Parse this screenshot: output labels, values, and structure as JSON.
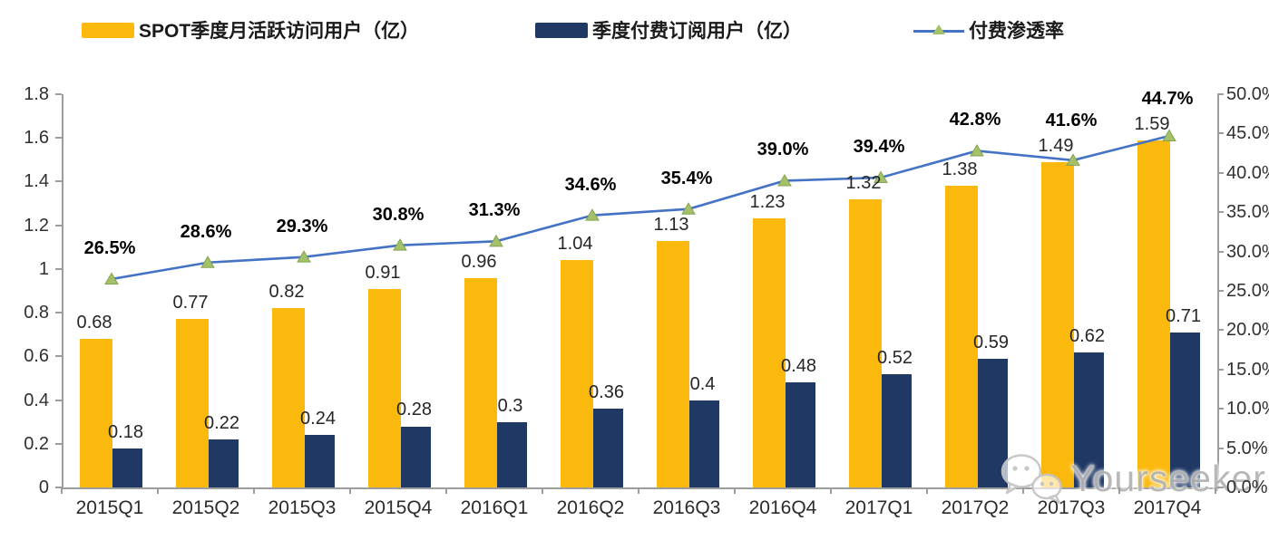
{
  "legend": [
    {
      "label": "SPOT季度月活跃访问用户（亿）",
      "type": "bar",
      "color": "#FBB90D"
    },
    {
      "label": "季度付费订阅用户（亿）",
      "type": "bar",
      "color": "#1F3864"
    },
    {
      "label": "付费渗透率",
      "type": "line",
      "color": "#4472C4",
      "marker_color": "#A4C16A"
    }
  ],
  "chart_data": {
    "type": "bar",
    "subtype": "combo-bar-line-dual-axis",
    "categories": [
      "2015Q1",
      "2015Q2",
      "2015Q3",
      "2015Q4",
      "2016Q1",
      "2016Q2",
      "2016Q3",
      "2016Q4",
      "2017Q1",
      "2017Q2",
      "2017Q3",
      "2017Q4"
    ],
    "series": [
      {
        "name": "SPOT季度月活跃访问用户（亿）",
        "type": "bar",
        "axis": "left",
        "color": "#FBB90D",
        "values": [
          0.68,
          0.77,
          0.82,
          0.91,
          0.96,
          1.04,
          1.13,
          1.23,
          1.32,
          1.38,
          1.49,
          1.59
        ],
        "labels": [
          "0.68",
          "0.77",
          "0.82",
          "0.91",
          "0.96",
          "1.04",
          "1.13",
          "1.23",
          "1.32",
          "1.38",
          "1.49",
          "1.59"
        ]
      },
      {
        "name": "季度付费订阅用户（亿）",
        "type": "bar",
        "axis": "left",
        "color": "#1F3864",
        "values": [
          0.18,
          0.22,
          0.24,
          0.28,
          0.3,
          0.36,
          0.4,
          0.48,
          0.52,
          0.59,
          0.62,
          0.71
        ],
        "labels": [
          "0.18",
          "0.22",
          "0.24",
          "0.28",
          "0.3",
          "0.36",
          "0.4",
          "0.48",
          "0.52",
          "0.59",
          "0.62",
          "0.71"
        ]
      },
      {
        "name": "付费渗透率",
        "type": "line",
        "axis": "right",
        "color": "#4472C4",
        "marker": "triangle",
        "marker_color": "#A4C16A",
        "values": [
          26.5,
          28.6,
          29.3,
          30.8,
          31.3,
          34.6,
          35.4,
          39.0,
          39.4,
          42.8,
          41.6,
          44.7
        ],
        "labels": [
          "26.5%",
          "28.6%",
          "29.3%",
          "30.8%",
          "31.3%",
          "34.6%",
          "35.4%",
          "39.0%",
          "39.4%",
          "42.8%",
          "41.6%",
          "44.7%"
        ]
      }
    ],
    "left_axis": {
      "min": 0,
      "max": 1.8,
      "step": 0.2,
      "tick_labels": [
        "0",
        "0.2",
        "0.4",
        "0.6",
        "0.8",
        "1",
        "1.2",
        "1.4",
        "1.6",
        "1.8"
      ]
    },
    "right_axis": {
      "min": 0,
      "max": 50,
      "step": 5,
      "tick_labels": [
        "0.0%",
        "5.0%",
        "10.0%",
        "15.0%",
        "20.0%",
        "25.0%",
        "30.0%",
        "35.0%",
        "40.0%",
        "45.0%",
        "50.0%"
      ]
    },
    "grid": false,
    "legend_position": "top",
    "axis_color": "#9d9d9d"
  },
  "watermark": {
    "text": "Yourseeker",
    "icon": "wechat-icon"
  }
}
